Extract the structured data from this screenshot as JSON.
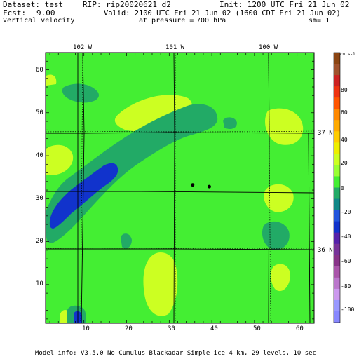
{
  "header": {
    "dataset_label": "Dataset: test",
    "rip_label": "RIP: rip20020621 d2",
    "init_label": "Init: 1200 UTC Fri 21 Jun 02",
    "fcst_label": "Fcst:",
    "fcst_value": "9.00",
    "valid_label": "Valid: 2100 UTC Fri 21 Jun 02 (1600 CDT Fri 21 Jun 02)",
    "field_name": "Vertical velocity",
    "pressure_label": "at pressure =",
    "pressure_value": "700 hPa",
    "sm_label": "sm= 1"
  },
  "footer": {
    "model_info": "Model info: V3.5.0 No Cumulus Blackadar Simple ice 4 km, 29 levels, 10 sec"
  },
  "map": {
    "lon_labels": [
      "102 W",
      "101 W",
      "100 W"
    ],
    "lat_labels": [
      "37 N",
      "36 N"
    ],
    "x_ticks": [
      "10",
      "20",
      "30",
      "40",
      "50",
      "60"
    ],
    "y_ticks": [
      "10",
      "20",
      "30",
      "40",
      "50",
      "60"
    ],
    "x_range": [
      1,
      64
    ],
    "y_range": [
      1,
      64
    ],
    "stations": [
      {
        "x": 35.5,
        "y": 33.2
      },
      {
        "x": 39.4,
        "y": 32.8
      }
    ],
    "colors": {
      "background_level": "#44ee33",
      "weak_up": "#ccff22",
      "weak_down": "#22aa66",
      "strong_down": "#1133cc",
      "boundaries": "#000000"
    }
  },
  "colorbar": {
    "unit_label": "cm s-1",
    "labels": [
      "80",
      "60",
      "40",
      "20",
      "0",
      "-20",
      "-40",
      "-60",
      "-80",
      "-100"
    ],
    "colors": [
      "#8b4513",
      "#a0522d",
      "#cc2222",
      "#ee3311",
      "#ff5500",
      "#ff8800",
      "#ffaa00",
      "#ffcc00",
      "#eeee00",
      "#ccff22",
      "#99ff33",
      "#44ee33",
      "#22aa66",
      "#118888",
      "#2255dd",
      "#1133cc",
      "#5522aa",
      "#773399",
      "#883388",
      "#aa55aa",
      "#bb77cc",
      "#cc99ee",
      "#9999ff",
      "#8888ff"
    ]
  }
}
